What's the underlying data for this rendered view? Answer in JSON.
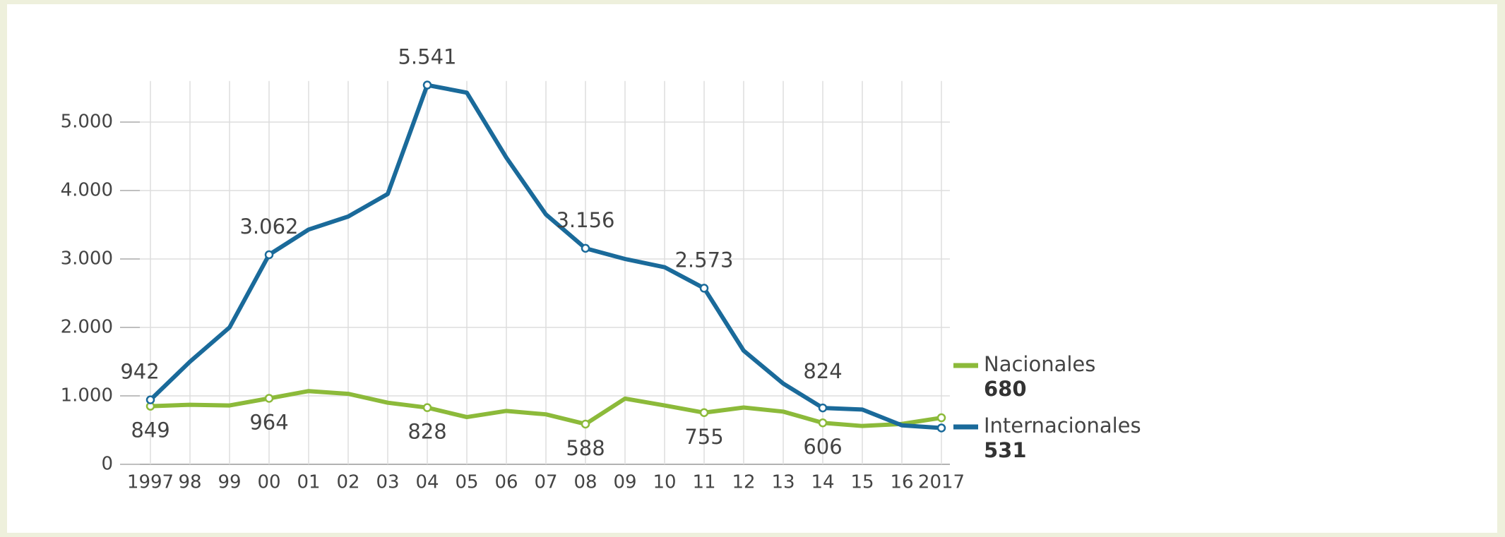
{
  "chart_data": {
    "type": "line",
    "categories": [
      "1997",
      "98",
      "99",
      "00",
      "01",
      "02",
      "03",
      "04",
      "05",
      "06",
      "07",
      "08",
      "09",
      "10",
      "11",
      "12",
      "13",
      "14",
      "15",
      "16",
      "2017"
    ],
    "series": [
      {
        "name": "Nacionales",
        "color": "#8cba3a",
        "values": [
          849,
          870,
          860,
          964,
          1070,
          1030,
          900,
          828,
          690,
          780,
          730,
          588,
          960,
          860,
          755,
          830,
          770,
          606,
          560,
          590,
          680
        ],
        "value_labels": [
          "849",
          null,
          null,
          "964",
          null,
          null,
          null,
          "828",
          null,
          null,
          null,
          "588",
          null,
          null,
          "755",
          null,
          null,
          "606",
          null,
          null,
          "680"
        ]
      },
      {
        "name": "Internacionales",
        "color": "#1a6a9a",
        "values": [
          942,
          1500,
          2000,
          3062,
          3430,
          3620,
          3950,
          5541,
          5430,
          4480,
          3650,
          3156,
          3000,
          2880,
          2573,
          1660,
          1180,
          824,
          800,
          570,
          531
        ],
        "value_labels": [
          "942",
          null,
          null,
          "3.062",
          null,
          null,
          null,
          "5.541",
          null,
          null,
          null,
          "3.156",
          null,
          null,
          "2.573",
          null,
          null,
          "824",
          null,
          null,
          "531"
        ]
      }
    ],
    "ylim": [
      0,
      5600
    ],
    "yticks": [
      0,
      {
        "value": 1000,
        "label": "1.000"
      },
      {
        "value": 2000,
        "label": "2.000"
      },
      {
        "value": 3000,
        "label": "3.000"
      },
      {
        "value": 4000,
        "label": "4.000"
      },
      {
        "value": 5000,
        "label": "5.000"
      }
    ],
    "grid": true
  }
}
